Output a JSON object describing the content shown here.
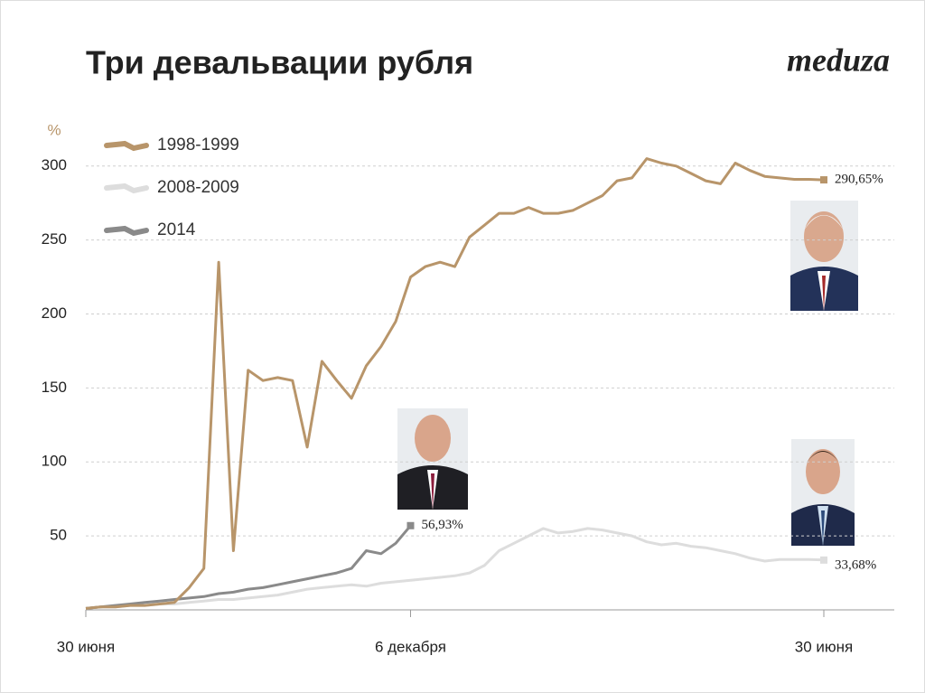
{
  "chart_data": {
    "type": "line",
    "title": "Три девальвации рубля",
    "brand": "meduza",
    "y_label": "%",
    "categories": [
      "30 июня",
      null,
      null,
      null,
      null,
      null,
      null,
      null,
      null,
      null,
      null,
      null,
      null,
      null,
      null,
      null,
      null,
      null,
      null,
      null,
      null,
      null,
      "6 декабря",
      null,
      null,
      null,
      null,
      null,
      null,
      null,
      null,
      null,
      null,
      null,
      null,
      null,
      null,
      null,
      null,
      null,
      null,
      null,
      null,
      null,
      null,
      null,
      null,
      null,
      null,
      null,
      "30 июня"
    ],
    "ylim": [
      0,
      320
    ],
    "yticks": [
      50,
      100,
      150,
      200,
      250,
      300
    ],
    "grid": true,
    "legend": "top-left",
    "series": [
      {
        "name": "1998-1999",
        "color": "#b8956a",
        "values": [
          1,
          2,
          2,
          3,
          3,
          4,
          5,
          15,
          28,
          235,
          40,
          162,
          155,
          157,
          155,
          110,
          168,
          155,
          143,
          165,
          178,
          195,
          225,
          232,
          235,
          232,
          252,
          260,
          268,
          268,
          272,
          268,
          268,
          270,
          275,
          280,
          290,
          292,
          305,
          302,
          300,
          295,
          290,
          288,
          302,
          297,
          293,
          292,
          291,
          291,
          290.65
        ],
        "value_labels": [
          null,
          null,
          null,
          null,
          null,
          null,
          null,
          null,
          null,
          null,
          null,
          null,
          null,
          null,
          null,
          null,
          null,
          null,
          null,
          null,
          null,
          null,
          null,
          null,
          null,
          null,
          null,
          null,
          null,
          null,
          null,
          null,
          null,
          null,
          null,
          null,
          null,
          null,
          null,
          null,
          null,
          null,
          null,
          null,
          null,
          null,
          null,
          null,
          null,
          null,
          "290,65%"
        ]
      },
      {
        "name": "2008-2009",
        "color": "#dddddd",
        "values": [
          1,
          2,
          2,
          3,
          3,
          4,
          4,
          5,
          6,
          7,
          7,
          8,
          9,
          10,
          12,
          14,
          15,
          16,
          17,
          16,
          18,
          19,
          20,
          21,
          22,
          23,
          25,
          30,
          40,
          45,
          50,
          55,
          52,
          53,
          55,
          54,
          52,
          50,
          46,
          44,
          45,
          43,
          42,
          40,
          38,
          35,
          33,
          34,
          34,
          34,
          33.68
        ],
        "value_labels": [
          null,
          null,
          null,
          null,
          null,
          null,
          null,
          null,
          null,
          null,
          null,
          null,
          null,
          null,
          null,
          null,
          null,
          null,
          null,
          null,
          null,
          null,
          null,
          null,
          null,
          null,
          null,
          null,
          null,
          null,
          null,
          null,
          null,
          null,
          null,
          null,
          null,
          null,
          null,
          null,
          null,
          null,
          null,
          null,
          null,
          null,
          null,
          null,
          null,
          null,
          "33,68%"
        ]
      },
      {
        "name": "2014",
        "color": "#8a8a8a",
        "values": [
          1,
          2,
          3,
          4,
          5,
          6,
          7,
          8,
          9,
          11,
          12,
          14,
          15,
          17,
          19,
          21,
          23,
          25,
          28,
          40,
          38,
          45,
          56.93,
          null,
          null,
          null,
          null,
          null,
          null,
          null,
          null,
          null,
          null,
          null,
          null,
          null,
          null,
          null,
          null,
          null,
          null,
          null,
          null,
          null,
          null,
          null,
          null,
          null,
          null,
          null,
          null
        ],
        "value_labels": [
          null,
          null,
          null,
          null,
          null,
          null,
          null,
          null,
          null,
          null,
          null,
          null,
          null,
          null,
          null,
          null,
          null,
          null,
          null,
          null,
          null,
          null,
          "56,93%",
          null,
          null,
          null,
          null,
          null,
          null,
          null,
          null,
          null,
          null,
          null,
          null,
          null,
          null,
          null,
          null,
          null,
          null,
          null,
          null,
          null,
          null,
          null,
          null,
          null,
          null,
          null,
          null
        ]
      }
    ]
  }
}
